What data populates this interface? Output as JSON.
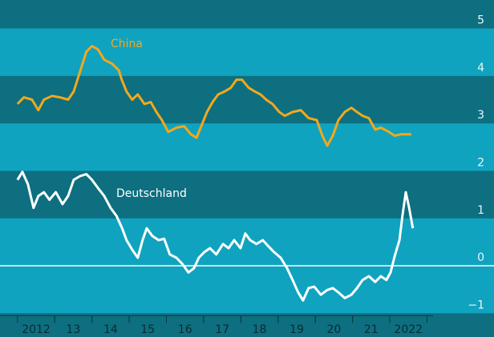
{
  "chart_data": {
    "type": "line",
    "xlim": [
      2011.53,
      2024.8
    ],
    "xticks": [
      {
        "value": 2012.5,
        "label": "2012"
      },
      {
        "value": 2013.5,
        "label": "13"
      },
      {
        "value": 2014.5,
        "label": "14"
      },
      {
        "value": 2015.5,
        "label": "15"
      },
      {
        "value": 2016.5,
        "label": "16"
      },
      {
        "value": 2017.5,
        "label": "17"
      },
      {
        "value": 2018.5,
        "label": "18"
      },
      {
        "value": 2019.5,
        "label": "19"
      },
      {
        "value": 2020.5,
        "label": "20"
      },
      {
        "value": 2021.5,
        "label": "21"
      },
      {
        "value": 2022.5,
        "label": "2022"
      }
    ],
    "ylim": [
      -1.5,
      5.6
    ],
    "yticks": [
      5,
      4,
      3,
      2,
      1,
      0,
      {
        "value": -1,
        "label": "−1"
      }
    ],
    "series": [
      {
        "name": "China",
        "color": "#f2a81d",
        "x": [
          2012.0,
          2012.17,
          2012.39,
          2012.56,
          2012.71,
          2012.93,
          2013.14,
          2013.36,
          2013.51,
          2013.68,
          2013.85,
          2014.0,
          2014.16,
          2014.33,
          2014.54,
          2014.72,
          2014.8,
          2014.93,
          2015.08,
          2015.23,
          2015.41,
          2015.58,
          2015.73,
          2015.88,
          2016.05,
          2016.27,
          2016.48,
          2016.66,
          2016.81,
          2016.96,
          2017.09,
          2017.24,
          2017.39,
          2017.56,
          2017.73,
          2017.88,
          2018.03,
          2018.21,
          2018.38,
          2018.53,
          2018.68,
          2018.85,
          2019.03,
          2019.18,
          2019.39,
          2019.61,
          2019.82,
          2020.04,
          2020.19,
          2020.32,
          2020.47,
          2020.62,
          2020.79,
          2020.97,
          2021.12,
          2021.27,
          2021.44,
          2021.61,
          2021.76,
          2021.98,
          2022.13,
          2022.3,
          2022.47,
          2022.58
        ],
        "values": [
          3.41,
          3.55,
          3.5,
          3.28,
          3.5,
          3.58,
          3.55,
          3.5,
          3.67,
          4.09,
          4.51,
          4.63,
          4.56,
          4.34,
          4.26,
          4.12,
          3.92,
          3.67,
          3.5,
          3.61,
          3.41,
          3.45,
          3.24,
          3.07,
          2.82,
          2.91,
          2.94,
          2.77,
          2.7,
          2.99,
          3.24,
          3.45,
          3.61,
          3.67,
          3.75,
          3.92,
          3.92,
          3.75,
          3.67,
          3.61,
          3.5,
          3.41,
          3.24,
          3.16,
          3.24,
          3.28,
          3.11,
          3.07,
          2.74,
          2.53,
          2.74,
          3.07,
          3.24,
          3.33,
          3.24,
          3.16,
          3.11,
          2.87,
          2.91,
          2.82,
          2.74,
          2.77,
          2.77,
          2.77
        ]
      },
      {
        "name": "Deutschland",
        "color": "#ffffff",
        "x": [
          2012.0,
          2012.13,
          2012.28,
          2012.43,
          2012.56,
          2012.71,
          2012.86,
          2013.03,
          2013.21,
          2013.36,
          2013.51,
          2013.68,
          2013.85,
          2014.0,
          2014.16,
          2014.33,
          2014.5,
          2014.66,
          2014.81,
          2014.93,
          2015.08,
          2015.23,
          2015.36,
          2015.47,
          2015.62,
          2015.79,
          2015.94,
          2016.09,
          2016.27,
          2016.44,
          2016.59,
          2016.74,
          2016.87,
          2017.02,
          2017.17,
          2017.34,
          2017.52,
          2017.67,
          2017.82,
          2017.99,
          2018.12,
          2018.25,
          2018.42,
          2018.59,
          2018.74,
          2018.89,
          2019.07,
          2019.24,
          2019.39,
          2019.54,
          2019.67,
          2019.82,
          2019.97,
          2020.15,
          2020.32,
          2020.47,
          2020.62,
          2020.79,
          2020.97,
          2021.12,
          2021.27,
          2021.44,
          2021.61,
          2021.76,
          2021.91,
          2022.02,
          2022.13,
          2022.26,
          2022.34,
          2022.43,
          2022.52,
          2022.62
        ],
        "values": [
          1.81,
          1.98,
          1.72,
          1.22,
          1.47,
          1.55,
          1.39,
          1.55,
          1.3,
          1.47,
          1.81,
          1.89,
          1.93,
          1.81,
          1.64,
          1.47,
          1.22,
          1.05,
          0.79,
          0.54,
          0.34,
          0.17,
          0.54,
          0.79,
          0.63,
          0.54,
          0.57,
          0.24,
          0.17,
          0.03,
          -0.14,
          -0.05,
          0.17,
          0.29,
          0.37,
          0.24,
          0.46,
          0.37,
          0.54,
          0.37,
          0.68,
          0.54,
          0.46,
          0.54,
          0.41,
          0.29,
          0.17,
          -0.05,
          -0.3,
          -0.56,
          -0.73,
          -0.47,
          -0.44,
          -0.61,
          -0.51,
          -0.47,
          -0.56,
          -0.68,
          -0.61,
          -0.47,
          -0.3,
          -0.22,
          -0.34,
          -0.22,
          -0.3,
          -0.14,
          0.2,
          0.54,
          1.05,
          1.55,
          1.22,
          0.79
        ]
      }
    ]
  }
}
